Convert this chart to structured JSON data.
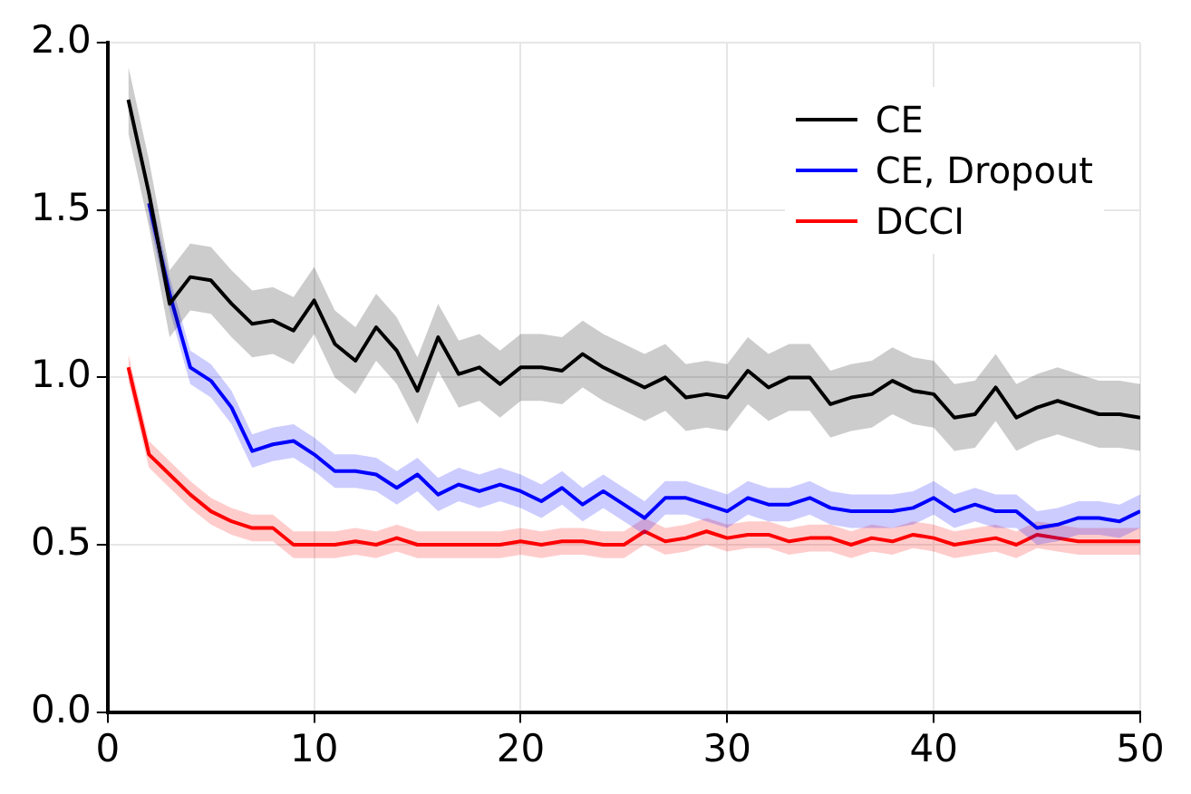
{
  "chart_data": {
    "type": "line",
    "x": [
      1,
      2,
      3,
      4,
      5,
      6,
      7,
      8,
      9,
      10,
      11,
      12,
      13,
      14,
      15,
      16,
      17,
      18,
      19,
      20,
      21,
      22,
      23,
      24,
      25,
      26,
      27,
      28,
      29,
      30,
      31,
      32,
      33,
      34,
      35,
      36,
      37,
      38,
      39,
      40,
      41,
      42,
      43,
      44,
      45,
      46,
      47,
      48,
      49,
      50
    ],
    "series": [
      {
        "name": "CE",
        "color": "#000000",
        "values": [
          1.83,
          1.55,
          1.22,
          1.3,
          1.29,
          1.22,
          1.16,
          1.17,
          1.14,
          1.23,
          1.1,
          1.05,
          1.15,
          1.08,
          0.96,
          1.12,
          1.01,
          1.03,
          0.98,
          1.03,
          1.03,
          1.02,
          1.07,
          1.03,
          1.0,
          0.97,
          1.0,
          0.94,
          0.95,
          0.94,
          1.02,
          0.97,
          1.0,
          1.0,
          0.92,
          0.94,
          0.95,
          0.99,
          0.96,
          0.95,
          0.88,
          0.89,
          0.97,
          0.88,
          0.91,
          0.93,
          0.91,
          0.89,
          0.89,
          0.88
        ],
        "upper": [
          1.93,
          1.65,
          1.32,
          1.4,
          1.39,
          1.32,
          1.26,
          1.27,
          1.24,
          1.33,
          1.2,
          1.15,
          1.25,
          1.18,
          1.06,
          1.22,
          1.11,
          1.13,
          1.08,
          1.13,
          1.13,
          1.12,
          1.17,
          1.13,
          1.1,
          1.07,
          1.1,
          1.04,
          1.05,
          1.04,
          1.12,
          1.07,
          1.1,
          1.1,
          1.02,
          1.04,
          1.05,
          1.09,
          1.06,
          1.05,
          0.98,
          0.99,
          1.07,
          0.98,
          1.01,
          1.03,
          1.01,
          0.99,
          0.99,
          0.98
        ],
        "lower": [
          1.73,
          1.45,
          1.12,
          1.2,
          1.19,
          1.12,
          1.06,
          1.07,
          1.04,
          1.13,
          1.0,
          0.95,
          1.05,
          0.98,
          0.86,
          1.02,
          0.91,
          0.93,
          0.88,
          0.93,
          0.93,
          0.92,
          0.97,
          0.93,
          0.9,
          0.87,
          0.9,
          0.84,
          0.85,
          0.84,
          0.92,
          0.87,
          0.9,
          0.9,
          0.82,
          0.84,
          0.85,
          0.89,
          0.86,
          0.85,
          0.78,
          0.79,
          0.87,
          0.78,
          0.81,
          0.83,
          0.81,
          0.79,
          0.79,
          0.78
        ]
      },
      {
        "name": "CE, Dropout",
        "color": "#0000ff",
        "values": [
          null,
          1.52,
          1.25,
          1.03,
          0.99,
          0.91,
          0.78,
          0.8,
          0.81,
          0.77,
          0.72,
          0.72,
          0.71,
          0.67,
          0.71,
          0.65,
          0.68,
          0.66,
          0.68,
          0.66,
          0.63,
          0.67,
          0.62,
          0.66,
          0.62,
          0.58,
          0.64,
          0.64,
          0.62,
          0.6,
          0.64,
          0.62,
          0.62,
          0.64,
          0.61,
          0.6,
          0.6,
          0.6,
          0.61,
          0.64,
          0.6,
          0.62,
          0.6,
          0.6,
          0.55,
          0.56,
          0.58,
          0.58,
          0.57,
          0.6
        ],
        "upper": [
          null,
          1.57,
          1.3,
          1.08,
          1.04,
          0.96,
          0.83,
          0.85,
          0.86,
          0.82,
          0.77,
          0.77,
          0.76,
          0.72,
          0.76,
          0.7,
          0.73,
          0.71,
          0.73,
          0.71,
          0.68,
          0.72,
          0.67,
          0.71,
          0.67,
          0.63,
          0.69,
          0.69,
          0.67,
          0.65,
          0.69,
          0.67,
          0.67,
          0.69,
          0.66,
          0.65,
          0.65,
          0.65,
          0.66,
          0.69,
          0.65,
          0.67,
          0.65,
          0.65,
          0.6,
          0.61,
          0.63,
          0.63,
          0.62,
          0.65
        ],
        "lower": [
          null,
          1.47,
          1.2,
          0.98,
          0.94,
          0.86,
          0.73,
          0.75,
          0.76,
          0.72,
          0.67,
          0.67,
          0.66,
          0.62,
          0.66,
          0.6,
          0.63,
          0.61,
          0.63,
          0.61,
          0.58,
          0.62,
          0.57,
          0.61,
          0.57,
          0.53,
          0.59,
          0.59,
          0.57,
          0.55,
          0.59,
          0.57,
          0.57,
          0.59,
          0.56,
          0.55,
          0.55,
          0.55,
          0.56,
          0.59,
          0.55,
          0.57,
          0.55,
          0.55,
          0.5,
          0.51,
          0.53,
          0.53,
          0.52,
          0.55
        ]
      },
      {
        "name": "DCCI",
        "color": "#ff0000",
        "values": [
          1.03,
          0.77,
          0.71,
          0.65,
          0.6,
          0.57,
          0.55,
          0.55,
          0.5,
          0.5,
          0.5,
          0.51,
          0.5,
          0.52,
          0.5,
          0.5,
          0.5,
          0.5,
          0.5,
          0.51,
          0.5,
          0.51,
          0.51,
          0.5,
          0.5,
          0.54,
          0.51,
          0.52,
          0.54,
          0.52,
          0.53,
          0.53,
          0.51,
          0.52,
          0.52,
          0.5,
          0.52,
          0.51,
          0.53,
          0.52,
          0.5,
          0.51,
          0.52,
          0.5,
          0.53,
          0.52,
          0.51,
          0.51,
          0.51,
          0.51
        ],
        "upper": [
          1.07,
          0.81,
          0.75,
          0.69,
          0.64,
          0.61,
          0.59,
          0.59,
          0.54,
          0.54,
          0.54,
          0.55,
          0.54,
          0.56,
          0.54,
          0.54,
          0.54,
          0.54,
          0.54,
          0.55,
          0.54,
          0.55,
          0.55,
          0.54,
          0.54,
          0.58,
          0.55,
          0.56,
          0.58,
          0.56,
          0.57,
          0.57,
          0.55,
          0.56,
          0.56,
          0.54,
          0.56,
          0.55,
          0.57,
          0.56,
          0.54,
          0.55,
          0.56,
          0.54,
          0.57,
          0.56,
          0.55,
          0.55,
          0.55,
          0.55
        ],
        "lower": [
          0.99,
          0.73,
          0.67,
          0.61,
          0.56,
          0.53,
          0.51,
          0.51,
          0.46,
          0.46,
          0.46,
          0.47,
          0.46,
          0.48,
          0.46,
          0.46,
          0.46,
          0.46,
          0.46,
          0.47,
          0.46,
          0.47,
          0.47,
          0.46,
          0.46,
          0.5,
          0.47,
          0.48,
          0.5,
          0.48,
          0.49,
          0.49,
          0.47,
          0.48,
          0.48,
          0.46,
          0.48,
          0.47,
          0.49,
          0.48,
          0.46,
          0.47,
          0.48,
          0.46,
          0.49,
          0.48,
          0.47,
          0.47,
          0.47,
          0.47
        ]
      }
    ],
    "xlim": [
      0,
      50
    ],
    "xticks": [
      0,
      10,
      20,
      30,
      40,
      50
    ],
    "ylim": [
      0,
      2
    ],
    "yticks": [
      {
        "value": 0,
        "label": "0.0"
      },
      {
        "value": 0.5,
        "label": "0.5"
      },
      {
        "value": 1,
        "label": "1.0"
      },
      {
        "value": 1.5,
        "label": "1.5"
      },
      {
        "value": 2,
        "label": "2.0"
      }
    ],
    "grid": true,
    "legend": "top right",
    "marker": "none",
    "line_style": "solid"
  }
}
